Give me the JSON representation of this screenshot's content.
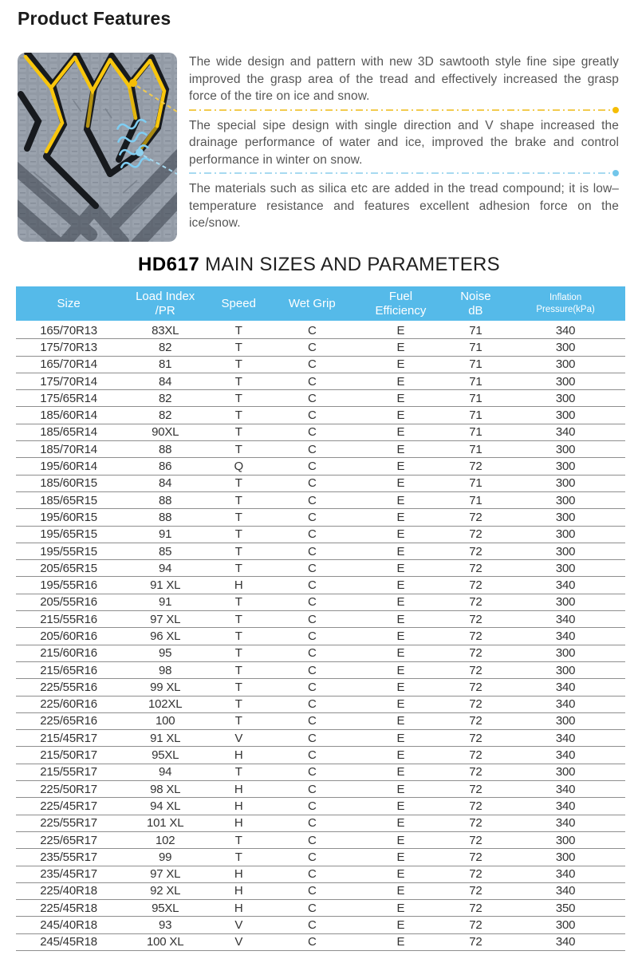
{
  "header": {
    "title": "Product Features"
  },
  "features": {
    "image_alt": "tire-tread-pattern",
    "paragraphs": [
      "The wide design and pattern with new 3D sawtooth style fine sipe greatly improved the grasp area of the tread and effectively increased the grasp force of the tire on ice and snow.",
      "The special sipe design with single direction and V shape increased the drainage performance of water and ice, improved the brake and control performance in winter on snow.",
      "The materials such as silica etc are added in the tread compound; it is low–temperature resistance and features excellent adhesion force on the ice/snow."
    ],
    "callout_colors": {
      "yellow": "#f5bd06",
      "blue": "#72c6ea"
    }
  },
  "sizes_section": {
    "model": "HD617",
    "title_rest": " MAIN SIZES AND PARAMETERS"
  },
  "table": {
    "header_bg": "#55bae9",
    "columns": [
      "Size",
      "Load Index\n/PR",
      "Speed",
      "Wet Grip",
      "Fuel\nEfficiency",
      "Noise\ndB",
      "Inflation\nPressure(kPa)"
    ],
    "rows": [
      [
        "165/70R13",
        "83XL",
        "T",
        "C",
        "E",
        "71",
        "340"
      ],
      [
        "175/70R13",
        "82",
        "T",
        "C",
        "E",
        "71",
        "300"
      ],
      [
        "165/70R14",
        "81",
        "T",
        "C",
        "E",
        "71",
        "300"
      ],
      [
        "175/70R14",
        "84",
        "T",
        "C",
        "E",
        "71",
        "300"
      ],
      [
        "175/65R14",
        "82",
        "T",
        "C",
        "E",
        "71",
        "300"
      ],
      [
        "185/60R14",
        "82",
        "T",
        "C",
        "E",
        "71",
        "300"
      ],
      [
        "185/65R14",
        "90XL",
        "T",
        "C",
        "E",
        "71",
        "340"
      ],
      [
        "185/70R14",
        "88",
        "T",
        "C",
        "E",
        "71",
        "300"
      ],
      [
        "195/60R14",
        "86",
        "Q",
        "C",
        "E",
        "72",
        "300"
      ],
      [
        "185/60R15",
        "84",
        "T",
        "C",
        "E",
        "71",
        "300"
      ],
      [
        "185/65R15",
        "88",
        "T",
        "C",
        "E",
        "71",
        "300"
      ],
      [
        "195/60R15",
        "88",
        "T",
        "C",
        "E",
        "72",
        "300"
      ],
      [
        "195/65R15",
        "91",
        "T",
        "C",
        "E",
        "72",
        "300"
      ],
      [
        "195/55R15",
        "85",
        "T",
        "C",
        "E",
        "72",
        "300"
      ],
      [
        "205/65R15",
        "94",
        "T",
        "C",
        "E",
        "72",
        "300"
      ],
      [
        "195/55R16",
        "91 XL",
        "H",
        "C",
        "E",
        "72",
        "340"
      ],
      [
        "205/55R16",
        "91",
        "T",
        "C",
        "E",
        "72",
        "300"
      ],
      [
        "215/55R16",
        "97 XL",
        "T",
        "C",
        "E",
        "72",
        "340"
      ],
      [
        "205/60R16",
        "96 XL",
        "T",
        "C",
        "E",
        "72",
        "340"
      ],
      [
        "215/60R16",
        "95",
        "T",
        "C",
        "E",
        "72",
        "300"
      ],
      [
        "215/65R16",
        "98",
        "T",
        "C",
        "E",
        "72",
        "300"
      ],
      [
        "225/55R16",
        "99 XL",
        "T",
        "C",
        "E",
        "72",
        "340"
      ],
      [
        "225/60R16",
        "102XL",
        "T",
        "C",
        "E",
        "72",
        "340"
      ],
      [
        "225/65R16",
        "100",
        "T",
        "C",
        "E",
        "72",
        "300"
      ],
      [
        "215/45R17",
        "91 XL",
        "V",
        "C",
        "E",
        "72",
        "340"
      ],
      [
        "215/50R17",
        "95XL",
        "H",
        "C",
        "E",
        "72",
        "340"
      ],
      [
        "215/55R17",
        "94",
        "T",
        "C",
        "E",
        "72",
        "300"
      ],
      [
        "225/50R17",
        "98 XL",
        "H",
        "C",
        "E",
        "72",
        "340"
      ],
      [
        "225/45R17",
        "94 XL",
        "H",
        "C",
        "E",
        "72",
        "340"
      ],
      [
        "225/55R17",
        "101 XL",
        "H",
        "C",
        "E",
        "72",
        "340"
      ],
      [
        "225/65R17",
        "102",
        "T",
        "C",
        "E",
        "72",
        "300"
      ],
      [
        "235/55R17",
        "99",
        "T",
        "C",
        "E",
        "72",
        "300"
      ],
      [
        "235/45R17",
        "97 XL",
        "H",
        "C",
        "E",
        "72",
        "340"
      ],
      [
        "225/40R18",
        "92 XL",
        "H",
        "C",
        "E",
        "72",
        "340"
      ],
      [
        "225/45R18",
        "95XL",
        "H",
        "C",
        "E",
        "72",
        "350"
      ],
      [
        "245/40R18",
        "93",
        "V",
        "C",
        "E",
        "72",
        "300"
      ],
      [
        "245/45R18",
        "100 XL",
        "V",
        "C",
        "E",
        "72",
        "340"
      ]
    ]
  }
}
